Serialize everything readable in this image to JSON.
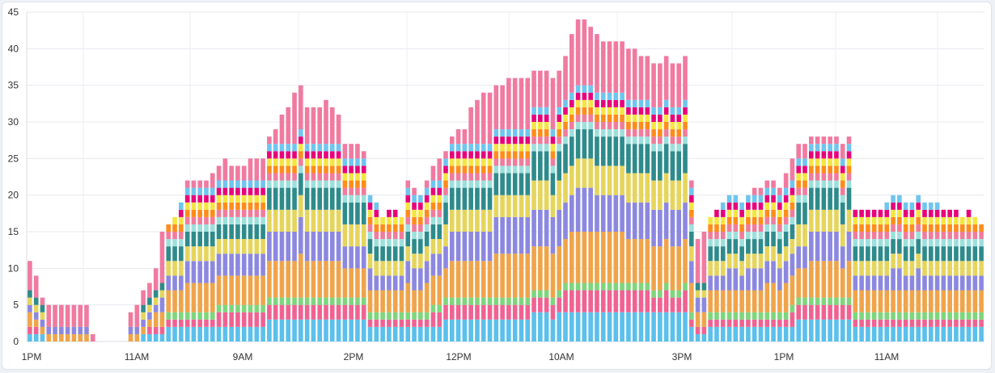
{
  "chart_data": {
    "type": "bar",
    "stacked": true,
    "title": "",
    "xlabel": "",
    "ylabel": "",
    "ylim": [
      0,
      45
    ],
    "y_ticks": [
      "0",
      "5",
      "10",
      "15",
      "20",
      "25",
      "30",
      "35",
      "40",
      "45"
    ],
    "x_tick_labels": [
      "1PM",
      "11AM",
      "9AM",
      "2PM",
      "12PM",
      "10AM",
      "3PM",
      "1PM",
      "11AM"
    ],
    "grid": true,
    "legend": "none",
    "layer_colors": [
      "#5bc0eb",
      "#f06292",
      "#7ed67c",
      "#f0a44a",
      "#8c88e0",
      "#e6d55c",
      "#2e8b8b",
      "#9ce0dc",
      "#f07c9c",
      "#ff8c1a",
      "#f4e542",
      "#e8007a",
      "#6ec6f0",
      "#f07aa0"
    ],
    "bar_totals": [
      11,
      9,
      6,
      5,
      5,
      5,
      5,
      5,
      5,
      5,
      1,
      0,
      0,
      0,
      0,
      0,
      4,
      5,
      7,
      8,
      10,
      15,
      16,
      17,
      19,
      22,
      22,
      22,
      22,
      23,
      24,
      25,
      24,
      24,
      24,
      25,
      25,
      25,
      28,
      29,
      31,
      32,
      34,
      35,
      32,
      32,
      32,
      33,
      32,
      31,
      27,
      27,
      27,
      26,
      20,
      19,
      17,
      18,
      18,
      17,
      22,
      21,
      20,
      22,
      24,
      25,
      26,
      28,
      29,
      29,
      32,
      33,
      34,
      34,
      35,
      35,
      36,
      36,
      36,
      36,
      37,
      37,
      37,
      36,
      37,
      39,
      42,
      44,
      44,
      43,
      42,
      41,
      41,
      41,
      41,
      40,
      40,
      39,
      39,
      38,
      38,
      39,
      38,
      38,
      39,
      22,
      14,
      15,
      17,
      18,
      19,
      20,
      20,
      19,
      20,
      21,
      21,
      22,
      22,
      21,
      23,
      25,
      27,
      27,
      28,
      28,
      28,
      28,
      28,
      27,
      28,
      18,
      18,
      18,
      18,
      18,
      19,
      20,
      20,
      19,
      19,
      20,
      19,
      19,
      19,
      18,
      18,
      18,
      17,
      18,
      17,
      16
    ],
    "series_base_levels": [
      3,
      2,
      1,
      5,
      4,
      3,
      3,
      1,
      1,
      1,
      1,
      1,
      1,
      4
    ]
  }
}
